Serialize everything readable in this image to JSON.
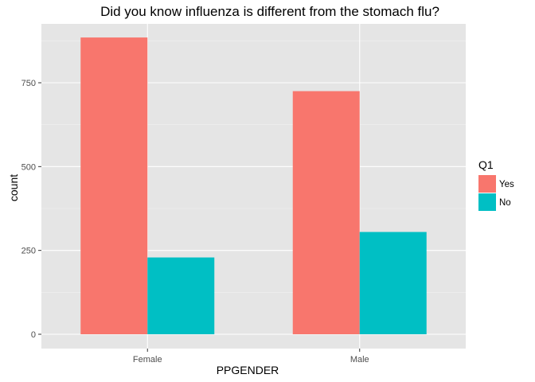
{
  "chart_data": {
    "type": "bar",
    "title": "Did you know influenza is different from the stomach flu?",
    "xlabel": "PPGENDER",
    "ylabel": "count",
    "categories": [
      "Female",
      "Male"
    ],
    "series": [
      {
        "name": "Yes",
        "color": "#F8766D",
        "values": [
          885,
          725
        ]
      },
      {
        "name": "No",
        "color": "#00BFC4",
        "values": [
          229,
          305
        ]
      }
    ],
    "yticks": [
      0,
      250,
      500,
      750
    ],
    "ytick_labels": [
      "0",
      "250",
      "500",
      "750"
    ],
    "ylim": [
      -45,
      930
    ],
    "legend": {
      "title": "Q1",
      "position": "right"
    },
    "grid": true,
    "panel_background": "#E5E5E5"
  }
}
